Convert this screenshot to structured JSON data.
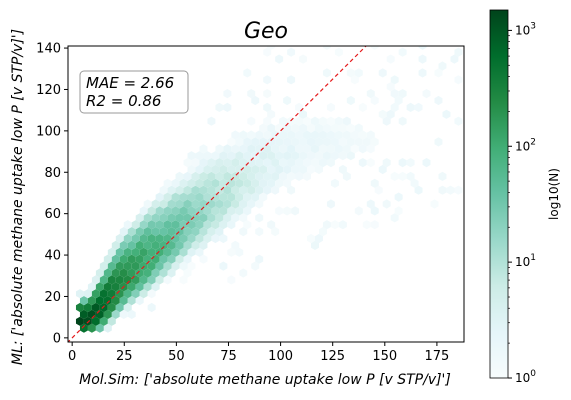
{
  "chart_data": {
    "type": "heatmap",
    "subtype": "hexbin",
    "title": "Geo",
    "xlabel": "Mol.Sim: ['absolute methane uptake low P [v STP/v]']",
    "ylabel": "ML: ['absolute methane uptake low P [v STP/v]']",
    "xlim": [
      -2,
      188
    ],
    "ylim": [
      -2,
      141
    ],
    "x_ticks": [
      0,
      25,
      50,
      75,
      100,
      125,
      150,
      175
    ],
    "y_ticks": [
      0,
      20,
      40,
      60,
      80,
      100,
      120,
      140
    ],
    "grid": false,
    "annotation": {
      "lines": [
        "MAE = 2.66",
        "R2 = 0.86"
      ],
      "placement": "top-left"
    },
    "reference_line": {
      "type": "y=x",
      "color": "#e41a1c",
      "style": "dashed"
    },
    "colorbar": {
      "label": "log10(N)",
      "scale": "log",
      "range": [
        1,
        1500
      ],
      "ticks": [
        {
          "base": "10",
          "exp": "0",
          "value": 1
        },
        {
          "base": "10",
          "exp": "1",
          "value": 10
        },
        {
          "base": "10",
          "exp": "2",
          "value": 100
        },
        {
          "base": "10",
          "exp": "3",
          "value": 1000
        }
      ],
      "colormap": "BuGn"
    },
    "density_ridge": [
      {
        "x": 8,
        "y": 8,
        "width": 3,
        "peak_count": 1500
      },
      {
        "x": 15,
        "y": 15,
        "width": 5,
        "peak_count": 700
      },
      {
        "x": 22,
        "y": 24,
        "width": 6,
        "peak_count": 350
      },
      {
        "x": 30,
        "y": 32,
        "width": 7,
        "peak_count": 180
      },
      {
        "x": 40,
        "y": 40,
        "width": 8,
        "peak_count": 90
      },
      {
        "x": 55,
        "y": 53,
        "width": 9,
        "peak_count": 30
      },
      {
        "x": 75,
        "y": 68,
        "width": 11,
        "peak_count": 8
      },
      {
        "x": 100,
        "y": 85,
        "width": 13,
        "peak_count": 2.5
      },
      {
        "x": 135,
        "y": 95,
        "width": 16,
        "peak_count": 1.3
      },
      {
        "x": 175,
        "y": 95,
        "width": 18,
        "peak_count": 1
      }
    ]
  }
}
